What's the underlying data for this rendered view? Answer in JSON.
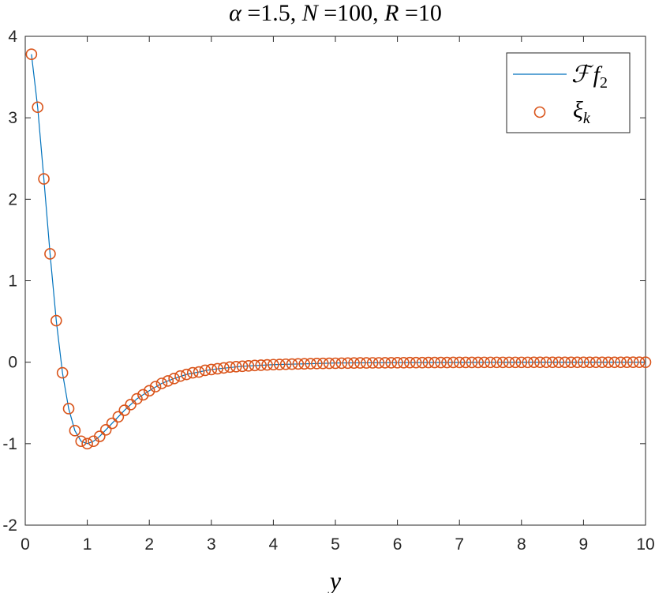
{
  "chart_data": {
    "type": "line",
    "title": "α =1.5, N =100, R =10",
    "title_parts": {
      "alpha_sym": "α",
      "alpha_val": " =1.5, ",
      "n_sym": "N",
      "n_val": " =100, ",
      "r_sym": "R",
      "r_val": " =10"
    },
    "xlabel": "y",
    "ylabel": "",
    "xlim": [
      0,
      10
    ],
    "ylim": [
      -2,
      4
    ],
    "xticks": [
      "0",
      "1",
      "2",
      "3",
      "4",
      "5",
      "6",
      "7",
      "8",
      "9",
      "10"
    ],
    "yticks": [
      "-2",
      "-1",
      "0",
      "1",
      "2",
      "3",
      "4"
    ],
    "grid": false,
    "legend_position": "top-right",
    "colors": {
      "line": "#0072BD",
      "markers": "#D95319",
      "axes": "#262626"
    },
    "legend": {
      "line_label": "ℱ f",
      "line_label_main": "ℱ",
      "line_label_f": "f",
      "line_label_sub": "2",
      "marker_label_main": "ξ",
      "marker_label_sub": "k"
    },
    "series": [
      {
        "name": "ℱ f2",
        "style": "line",
        "x": [
          0.1,
          0.2,
          0.3,
          0.4,
          0.5,
          0.6,
          0.7,
          0.8,
          0.9,
          1.0,
          1.1,
          1.2,
          1.3,
          1.4,
          1.5,
          1.6,
          1.7,
          1.8,
          1.9,
          2.0,
          2.2,
          2.4,
          2.6,
          2.8,
          3.0,
          3.5,
          4.0,
          4.5,
          5.0,
          6.0,
          7.0,
          8.0,
          9.0,
          10.0
        ],
        "y": [
          3.78,
          3.13,
          2.25,
          1.33,
          0.51,
          -0.13,
          -0.57,
          -0.84,
          -0.97,
          -1.0,
          -0.97,
          -0.91,
          -0.83,
          -0.75,
          -0.67,
          -0.59,
          -0.52,
          -0.45,
          -0.4,
          -0.35,
          -0.26,
          -0.2,
          -0.15,
          -0.12,
          -0.09,
          -0.05,
          -0.03,
          -0.02,
          -0.01,
          -0.005,
          -0.003,
          -0.001,
          -0.001,
          0.0
        ]
      },
      {
        "name": "ξk",
        "style": "markers",
        "x": [
          0.1,
          0.2,
          0.3,
          0.4,
          0.5,
          0.6,
          0.7,
          0.8,
          0.9,
          1.0,
          1.1,
          1.2,
          1.3,
          1.4,
          1.5,
          1.6,
          1.7,
          1.8,
          1.9,
          2.0,
          2.1,
          2.2,
          2.3,
          2.4,
          2.5,
          2.6,
          2.7,
          2.8,
          2.9,
          3.0,
          3.1,
          3.2,
          3.3,
          3.4,
          3.5,
          3.6,
          3.7,
          3.8,
          3.9,
          4.0,
          4.1,
          4.2,
          4.3,
          4.4,
          4.5,
          4.6,
          4.7,
          4.8,
          4.9,
          5.0,
          5.1,
          5.2,
          5.3,
          5.4,
          5.5,
          5.6,
          5.7,
          5.8,
          5.9,
          6.0,
          6.1,
          6.2,
          6.3,
          6.4,
          6.5,
          6.6,
          6.7,
          6.8,
          6.9,
          7.0,
          7.1,
          7.2,
          7.3,
          7.4,
          7.5,
          7.6,
          7.7,
          7.8,
          7.9,
          8.0,
          8.1,
          8.2,
          8.3,
          8.4,
          8.5,
          8.6,
          8.7,
          8.8,
          8.9,
          9.0,
          9.1,
          9.2,
          9.3,
          9.4,
          9.5,
          9.6,
          9.7,
          9.8,
          9.9,
          10.0
        ],
        "y": [
          3.78,
          3.13,
          2.25,
          1.33,
          0.51,
          -0.13,
          -0.57,
          -0.84,
          -0.97,
          -1.0,
          -0.97,
          -0.91,
          -0.83,
          -0.75,
          -0.67,
          -0.59,
          -0.52,
          -0.45,
          -0.4,
          -0.35,
          -0.3,
          -0.26,
          -0.23,
          -0.2,
          -0.17,
          -0.15,
          -0.13,
          -0.12,
          -0.1,
          -0.09,
          -0.08,
          -0.07,
          -0.06,
          -0.055,
          -0.05,
          -0.045,
          -0.04,
          -0.037,
          -0.033,
          -0.03,
          -0.028,
          -0.025,
          -0.023,
          -0.021,
          -0.02,
          -0.018,
          -0.016,
          -0.015,
          -0.014,
          -0.013,
          -0.012,
          -0.011,
          -0.01,
          -0.009,
          -0.009,
          -0.008,
          -0.008,
          -0.007,
          -0.007,
          -0.006,
          -0.006,
          -0.005,
          -0.005,
          -0.005,
          -0.004,
          -0.004,
          -0.004,
          -0.004,
          -0.003,
          -0.003,
          -0.003,
          -0.003,
          -0.003,
          -0.002,
          -0.002,
          -0.002,
          -0.002,
          -0.002,
          -0.002,
          -0.002,
          -0.002,
          -0.001,
          -0.001,
          -0.001,
          -0.001,
          -0.001,
          -0.001,
          -0.001,
          -0.001,
          -0.001,
          -0.001,
          -0.001,
          -0.001,
          -0.001,
          -0.001,
          -0.001,
          0.0,
          0.0,
          0.0,
          0.0
        ]
      }
    ]
  }
}
